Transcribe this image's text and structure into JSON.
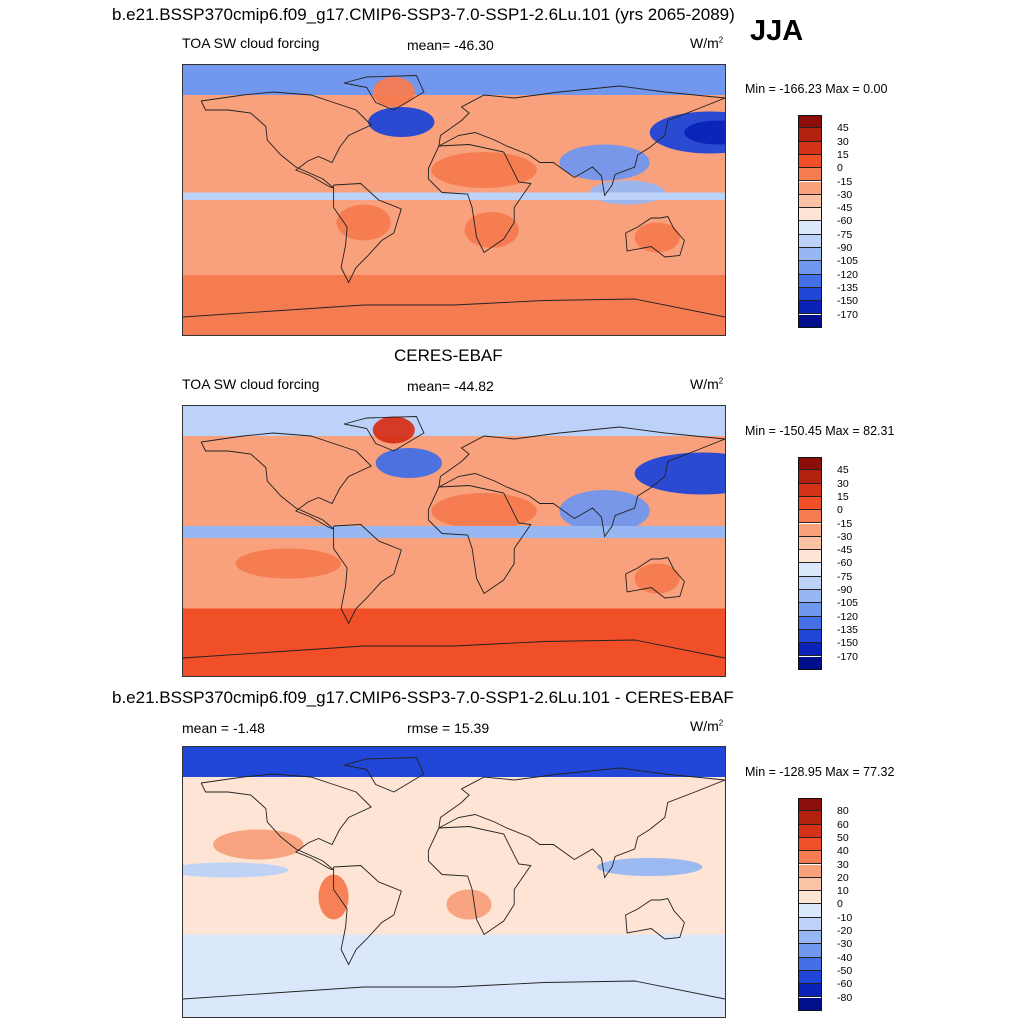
{
  "figure": {
    "season": "JJA",
    "panel1_title": "b.e21.BSSP370cmip6.f09_g17.CMIP6-SSP3-7.0-SSP1-2.6Lu.101 (yrs 2065-2089)",
    "panel2_title": "CERES-EBAF",
    "panel3_title": "b.e21.BSSP370cmip6.f09_g17.CMIP6-SSP3-7.0-SSP1-2.6Lu.101 - CERES-EBAF"
  },
  "panels": [
    {
      "left_label": "TOA SW cloud forcing",
      "center_label": "mean= -46.30",
      "units_base": "W/m",
      "units_exp": "2",
      "minmax": "Min = -166.23 Max =   0.00"
    },
    {
      "left_label": "TOA SW cloud forcing",
      "center_label": "mean= -44.82",
      "units_base": "W/m",
      "units_exp": "2",
      "minmax": "Min = -150.45 Max =  82.31"
    },
    {
      "left_label": "mean =  -1.48",
      "center_label": "rmse =  15.39",
      "units_base": "W/m",
      "units_exp": "2",
      "minmax": "Min = -128.95 Max =  77.32"
    }
  ],
  "colorbar_field": {
    "labels": [
      "45",
      "30",
      "15",
      "0",
      "-15",
      "-30",
      "-45",
      "-60",
      "-75",
      "-90",
      "-105",
      "-120",
      "-135",
      "-150",
      "-170"
    ],
    "colors": [
      "#8b0e0a",
      "#b22010",
      "#d6321a",
      "#f04f28",
      "#f57b50",
      "#f9a07c",
      "#fbc3a6",
      "#fde4d4",
      "#dbe8fb",
      "#bcd2f8",
      "#97b7f3",
      "#7197ef",
      "#456fe6",
      "#1f46d6",
      "#0a22b8",
      "#020f8a"
    ]
  },
  "colorbar_diff": {
    "labels": [
      "80",
      "60",
      "50",
      "40",
      "30",
      "20",
      "10",
      "0",
      "-10",
      "-20",
      "-30",
      "-40",
      "-50",
      "-60",
      "-80"
    ],
    "colors": [
      "#8b0e0a",
      "#b22010",
      "#d6321a",
      "#f04f28",
      "#f57b50",
      "#f9a07c",
      "#fbc3a6",
      "#fde4d4",
      "#dbe8fb",
      "#bcd2f8",
      "#97b7f3",
      "#7197ef",
      "#456fe6",
      "#1f46d6",
      "#0a22b8",
      "#020f8a"
    ]
  },
  "map_fields": {
    "panel1": {
      "background": "#f9a07c",
      "patches": [
        {
          "shape": "band",
          "lat_top": 90,
          "lat_bottom": 70,
          "color": "#7197ef"
        },
        {
          "shape": "ellipse",
          "lon": 170,
          "lat": 45,
          "rlon": 40,
          "rlat": 14,
          "color": "#1f46d6"
        },
        {
          "shape": "ellipse",
          "lon": 175,
          "lat": 45,
          "rlon": 22,
          "rlat": 8,
          "color": "#0a22b8"
        },
        {
          "shape": "ellipse",
          "lon": -35,
          "lat": 52,
          "rlon": 22,
          "rlat": 10,
          "color": "#1f46d6"
        },
        {
          "shape": "ellipse",
          "lon": -40,
          "lat": 72,
          "rlon": 14,
          "rlat": 10,
          "color": "#f57b50"
        },
        {
          "shape": "ellipse",
          "lon": 100,
          "lat": 25,
          "rlon": 30,
          "rlat": 12,
          "color": "#7197ef"
        },
        {
          "shape": "ellipse",
          "lon": 115,
          "lat": 5,
          "rlon": 25,
          "rlat": 8,
          "color": "#97b7f3"
        },
        {
          "shape": "ellipse",
          "lon": 20,
          "lat": 20,
          "rlon": 35,
          "rlat": 12,
          "color": "#f57b50"
        },
        {
          "shape": "ellipse",
          "lon": -60,
          "lat": -15,
          "rlon": 18,
          "rlat": 12,
          "color": "#f57b50"
        },
        {
          "shape": "ellipse",
          "lon": 25,
          "lat": -20,
          "rlon": 18,
          "rlat": 12,
          "color": "#f57b50"
        },
        {
          "shape": "ellipse",
          "lon": 135,
          "lat": -25,
          "rlon": 15,
          "rlat": 10,
          "color": "#f57b50"
        },
        {
          "shape": "band",
          "lat_top": -50,
          "lat_bottom": -90,
          "color": "#f57b50"
        },
        {
          "shape": "band",
          "lat_top": 5,
          "lat_bottom": 0,
          "color": "#bcd2f8"
        }
      ]
    },
    "panel2": {
      "background": "#f9a07c",
      "patches": [
        {
          "shape": "band",
          "lat_top": 90,
          "lat_bottom": 70,
          "color": "#bcd2f8"
        },
        {
          "shape": "ellipse",
          "lon": 165,
          "lat": 45,
          "rlon": 45,
          "rlat": 14,
          "color": "#1f46d6"
        },
        {
          "shape": "ellipse",
          "lon": -30,
          "lat": 52,
          "rlon": 22,
          "rlat": 10,
          "color": "#456fe6"
        },
        {
          "shape": "ellipse",
          "lon": -40,
          "lat": 74,
          "rlon": 14,
          "rlat": 9,
          "color": "#d6321a"
        },
        {
          "shape": "ellipse",
          "lon": 100,
          "lat": 20,
          "rlon": 30,
          "rlat": 14,
          "color": "#7197ef"
        },
        {
          "shape": "ellipse",
          "lon": 20,
          "lat": 20,
          "rlon": 35,
          "rlat": 12,
          "color": "#f57b50"
        },
        {
          "shape": "ellipse",
          "lon": -110,
          "lat": -15,
          "rlon": 35,
          "rlat": 10,
          "color": "#f57b50"
        },
        {
          "shape": "ellipse",
          "lon": 135,
          "lat": -25,
          "rlon": 15,
          "rlat": 10,
          "color": "#f57b50"
        },
        {
          "shape": "band",
          "lat_top": -45,
          "lat_bottom": -90,
          "color": "#f04f28"
        },
        {
          "shape": "band",
          "lat_top": 10,
          "lat_bottom": 2,
          "color": "#97b7f3"
        }
      ]
    },
    "panel3": {
      "background": "#fde4d4",
      "patches": [
        {
          "shape": "band",
          "lat_top": 90,
          "lat_bottom": 70,
          "color": "#1f46d6"
        },
        {
          "shape": "band",
          "lat_top": -35,
          "lat_bottom": -90,
          "color": "#dbe8fb"
        },
        {
          "shape": "ellipse",
          "lon": -130,
          "lat": 25,
          "rlon": 30,
          "rlat": 10,
          "color": "#f9a07c"
        },
        {
          "shape": "ellipse",
          "lon": -80,
          "lat": -10,
          "rlon": 10,
          "rlat": 15,
          "color": "#f57b50"
        },
        {
          "shape": "ellipse",
          "lon": 10,
          "lat": -15,
          "rlon": 15,
          "rlat": 10,
          "color": "#f9a07c"
        },
        {
          "shape": "ellipse",
          "lon": 130,
          "lat": 10,
          "rlon": 35,
          "rlat": 6,
          "color": "#97b7f3"
        },
        {
          "shape": "ellipse",
          "lon": -150,
          "lat": 8,
          "rlon": 40,
          "rlat": 5,
          "color": "#bcd2f8"
        }
      ]
    }
  }
}
